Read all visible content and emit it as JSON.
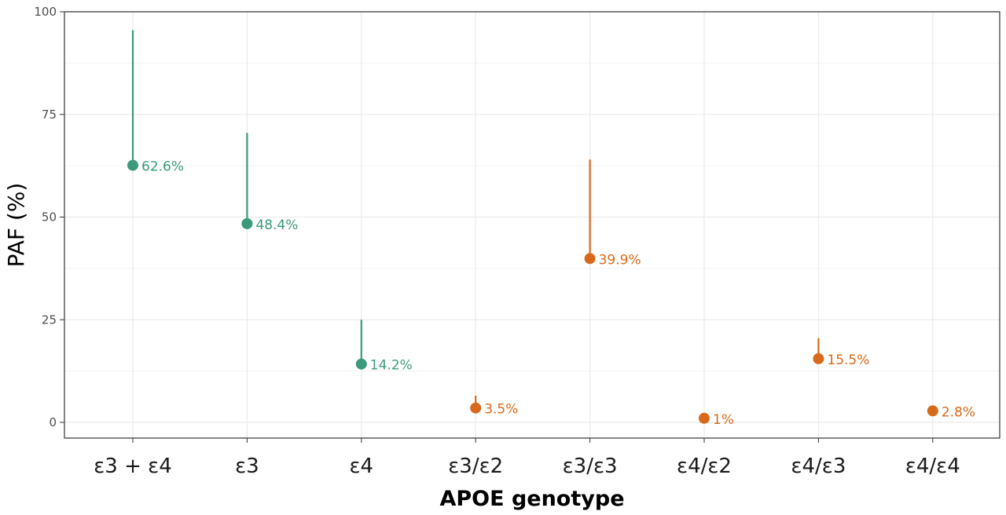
{
  "colors": {
    "group_a": "#3a9a7b",
    "group_b": "#d8691a",
    "grid": "#ebebeb",
    "panel_border": "#333333"
  },
  "chart_data": {
    "type": "scatter",
    "subtype": "point-with-upper-error-bar",
    "xlabel": "APOE genotype",
    "ylabel": "PAF (%)",
    "ylim": [
      0,
      100
    ],
    "yticks": [
      0,
      25,
      50,
      75,
      100
    ],
    "grid": true,
    "legend": "none",
    "categories": [
      "ε3 + ε4",
      "ε3",
      "ε4",
      "ε3/ε2",
      "ε3/ε3",
      "ε4/ε2",
      "ε4/ε3",
      "ε4/ε4"
    ],
    "points": [
      {
        "category": "ε3 + ε4",
        "value": 62.6,
        "upper": 95.5,
        "label": "62.6%",
        "group": "a"
      },
      {
        "category": "ε3",
        "value": 48.4,
        "upper": 70.5,
        "label": "48.4%",
        "group": "a"
      },
      {
        "category": "ε4",
        "value": 14.2,
        "upper": 25.0,
        "label": "14.2%",
        "group": "a"
      },
      {
        "category": "ε3/ε2",
        "value": 3.5,
        "upper": 6.5,
        "label": "3.5%",
        "group": "b"
      },
      {
        "category": "ε3/ε3",
        "value": 39.9,
        "upper": 64.0,
        "label": "39.9%",
        "group": "b"
      },
      {
        "category": "ε4/ε2",
        "value": 1.0,
        "upper": 1.0,
        "label": "1%",
        "group": "b"
      },
      {
        "category": "ε4/ε3",
        "value": 15.5,
        "upper": 20.5,
        "label": "15.5%",
        "group": "b"
      },
      {
        "category": "ε4/ε4",
        "value": 2.8,
        "upper": 2.8,
        "label": "2.8%",
        "group": "b"
      }
    ]
  }
}
